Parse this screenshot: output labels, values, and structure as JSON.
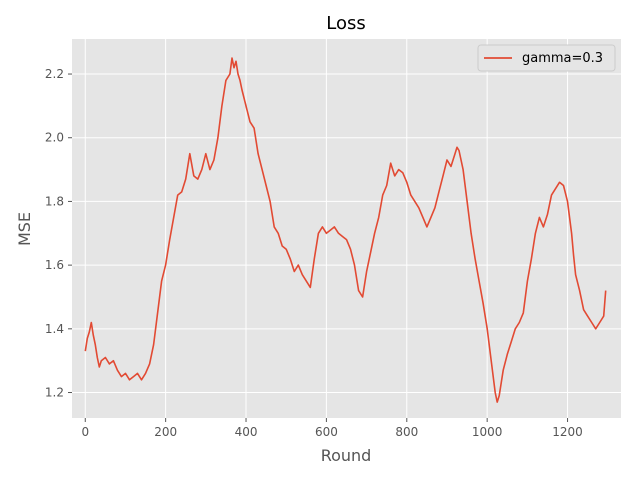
{
  "chart_data": {
    "type": "line",
    "title": "Loss",
    "xlabel": "Round",
    "ylabel": "MSE",
    "xlim": [
      -33,
      1333
    ],
    "ylim": [
      1.12,
      2.31
    ],
    "xticks": [
      0,
      200,
      400,
      600,
      800,
      1000,
      1200
    ],
    "yticks": [
      1.2,
      1.4,
      1.6,
      1.8,
      2.0,
      2.2
    ],
    "xtick_labels": [
      "0",
      "200",
      "400",
      "600",
      "800",
      "1000",
      "1200"
    ],
    "ytick_labels": [
      "1.2",
      "1.4",
      "1.6",
      "1.8",
      "2.0",
      "2.2"
    ],
    "grid": true,
    "legend_position": "top-right",
    "background_color": "#e5e5e5",
    "series": [
      {
        "name": "gamma=0.3",
        "color": "#e24a33",
        "x": [
          0,
          5,
          10,
          15,
          20,
          25,
          30,
          35,
          40,
          50,
          60,
          70,
          80,
          90,
          100,
          110,
          120,
          130,
          140,
          150,
          160,
          170,
          180,
          190,
          200,
          210,
          220,
          230,
          240,
          250,
          260,
          270,
          280,
          290,
          300,
          310,
          320,
          330,
          340,
          350,
          360,
          365,
          370,
          375,
          380,
          385,
          390,
          400,
          410,
          420,
          430,
          440,
          450,
          460,
          470,
          480,
          490,
          500,
          510,
          520,
          530,
          540,
          550,
          560,
          570,
          580,
          590,
          600,
          610,
          620,
          630,
          640,
          650,
          660,
          670,
          680,
          690,
          700,
          710,
          720,
          730,
          740,
          750,
          760,
          770,
          780,
          790,
          800,
          810,
          820,
          830,
          840,
          850,
          860,
          870,
          880,
          890,
          900,
          910,
          920,
          925,
          930,
          940,
          950,
          960,
          970,
          980,
          990,
          1000,
          1010,
          1020,
          1025,
          1030,
          1040,
          1050,
          1060,
          1070,
          1080,
          1090,
          1100,
          1110,
          1120,
          1130,
          1140,
          1150,
          1160,
          1170,
          1180,
          1190,
          1200,
          1210,
          1215,
          1220,
          1230,
          1240,
          1250,
          1260,
          1270,
          1280,
          1290,
          1295
        ],
        "y": [
          1.33,
          1.37,
          1.39,
          1.42,
          1.38,
          1.35,
          1.31,
          1.28,
          1.3,
          1.31,
          1.29,
          1.3,
          1.27,
          1.25,
          1.26,
          1.24,
          1.25,
          1.26,
          1.24,
          1.26,
          1.29,
          1.35,
          1.45,
          1.55,
          1.6,
          1.68,
          1.75,
          1.82,
          1.83,
          1.87,
          1.95,
          1.88,
          1.87,
          1.9,
          1.95,
          1.9,
          1.93,
          2.0,
          2.1,
          2.18,
          2.2,
          2.25,
          2.22,
          2.24,
          2.2,
          2.18,
          2.15,
          2.1,
          2.05,
          2.03,
          1.95,
          1.9,
          1.85,
          1.8,
          1.72,
          1.7,
          1.66,
          1.65,
          1.62,
          1.58,
          1.6,
          1.57,
          1.55,
          1.53,
          1.62,
          1.7,
          1.72,
          1.7,
          1.71,
          1.72,
          1.7,
          1.69,
          1.68,
          1.65,
          1.6,
          1.52,
          1.5,
          1.58,
          1.64,
          1.7,
          1.75,
          1.82,
          1.85,
          1.92,
          1.88,
          1.9,
          1.89,
          1.86,
          1.82,
          1.8,
          1.78,
          1.75,
          1.72,
          1.75,
          1.78,
          1.83,
          1.88,
          1.93,
          1.91,
          1.95,
          1.97,
          1.96,
          1.9,
          1.8,
          1.7,
          1.62,
          1.55,
          1.48,
          1.4,
          1.3,
          1.2,
          1.17,
          1.19,
          1.27,
          1.32,
          1.36,
          1.4,
          1.42,
          1.45,
          1.55,
          1.62,
          1.7,
          1.75,
          1.72,
          1.76,
          1.82,
          1.84,
          1.86,
          1.85,
          1.8,
          1.7,
          1.63,
          1.57,
          1.52,
          1.46,
          1.44,
          1.42,
          1.4,
          1.42,
          1.44,
          1.52
        ]
      }
    ]
  }
}
